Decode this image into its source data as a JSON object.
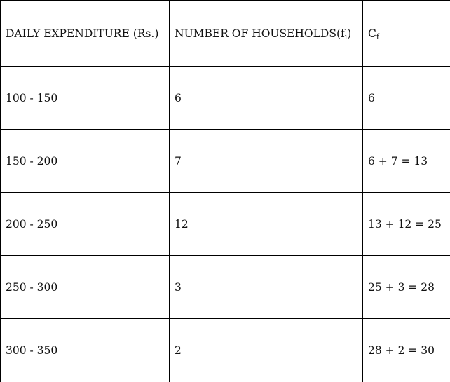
{
  "table": {
    "headers": {
      "expenditure": "DAILY EXPENDITURE (Rs.)",
      "households_main": "NUMBER OF HOUSEHOLDS(f",
      "households_sub": "i",
      "households_close": ")",
      "cf_main": "C",
      "cf_sub": "f"
    },
    "rows": [
      {
        "range": "100 - 150",
        "frequency": "6",
        "cumulative": "6"
      },
      {
        "range": "150 - 200",
        "frequency": "7",
        "cumulative": "6 + 7 = 13"
      },
      {
        "range": "200 - 250",
        "frequency": "12",
        "cumulative": "13 + 12 = 25"
      },
      {
        "range": "250 - 300",
        "frequency": "3",
        "cumulative": "25 + 3 = 28"
      },
      {
        "range": "300 - 350",
        "frequency": "2",
        "cumulative": "28 + 2 = 30"
      }
    ]
  }
}
